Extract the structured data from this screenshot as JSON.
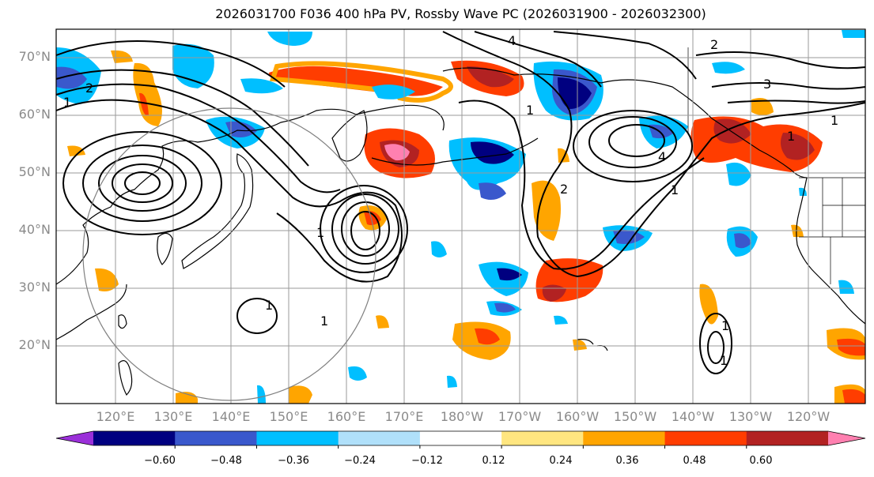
{
  "title": "2026031700 F036 400 hPa PV, Rossby Wave PC (2026031900 - 2026032300)",
  "lat_labels": [
    "70°N",
    "60°N",
    "50°N",
    "40°N",
    "30°N",
    "20°N"
  ],
  "lon_labels": [
    "120°E",
    "130°E",
    "140°E",
    "150°E",
    "160°E",
    "170°E",
    "180°W",
    "170°W",
    "160°W",
    "150°W",
    "140°W",
    "130°W",
    "120°W"
  ],
  "colorbar": {
    "ticks": [
      "−0.60",
      "−0.48",
      "−0.36",
      "−0.24",
      "−0.12",
      "0.12",
      "0.24",
      "0.36",
      "0.48",
      "0.60"
    ],
    "colors": [
      "#9b30d9",
      "#000080",
      "#3a58cc",
      "#00bfff",
      "#b0e0fa",
      "#ffffff",
      "#ffe680",
      "#ffa500",
      "#ff3d00",
      "#b22222",
      "#ff80b0"
    ]
  },
  "contour_labels": [
    "1",
    "2",
    "3",
    "4"
  ],
  "map": {
    "region": "North Pacific",
    "lat_range": [
      10,
      75
    ],
    "lon_range": [
      110,
      245
    ],
    "pv_contour_levels": [
      1,
      2,
      3,
      4,
      5,
      6,
      7
    ],
    "shading_variable": "Rossby Wave PC"
  }
}
